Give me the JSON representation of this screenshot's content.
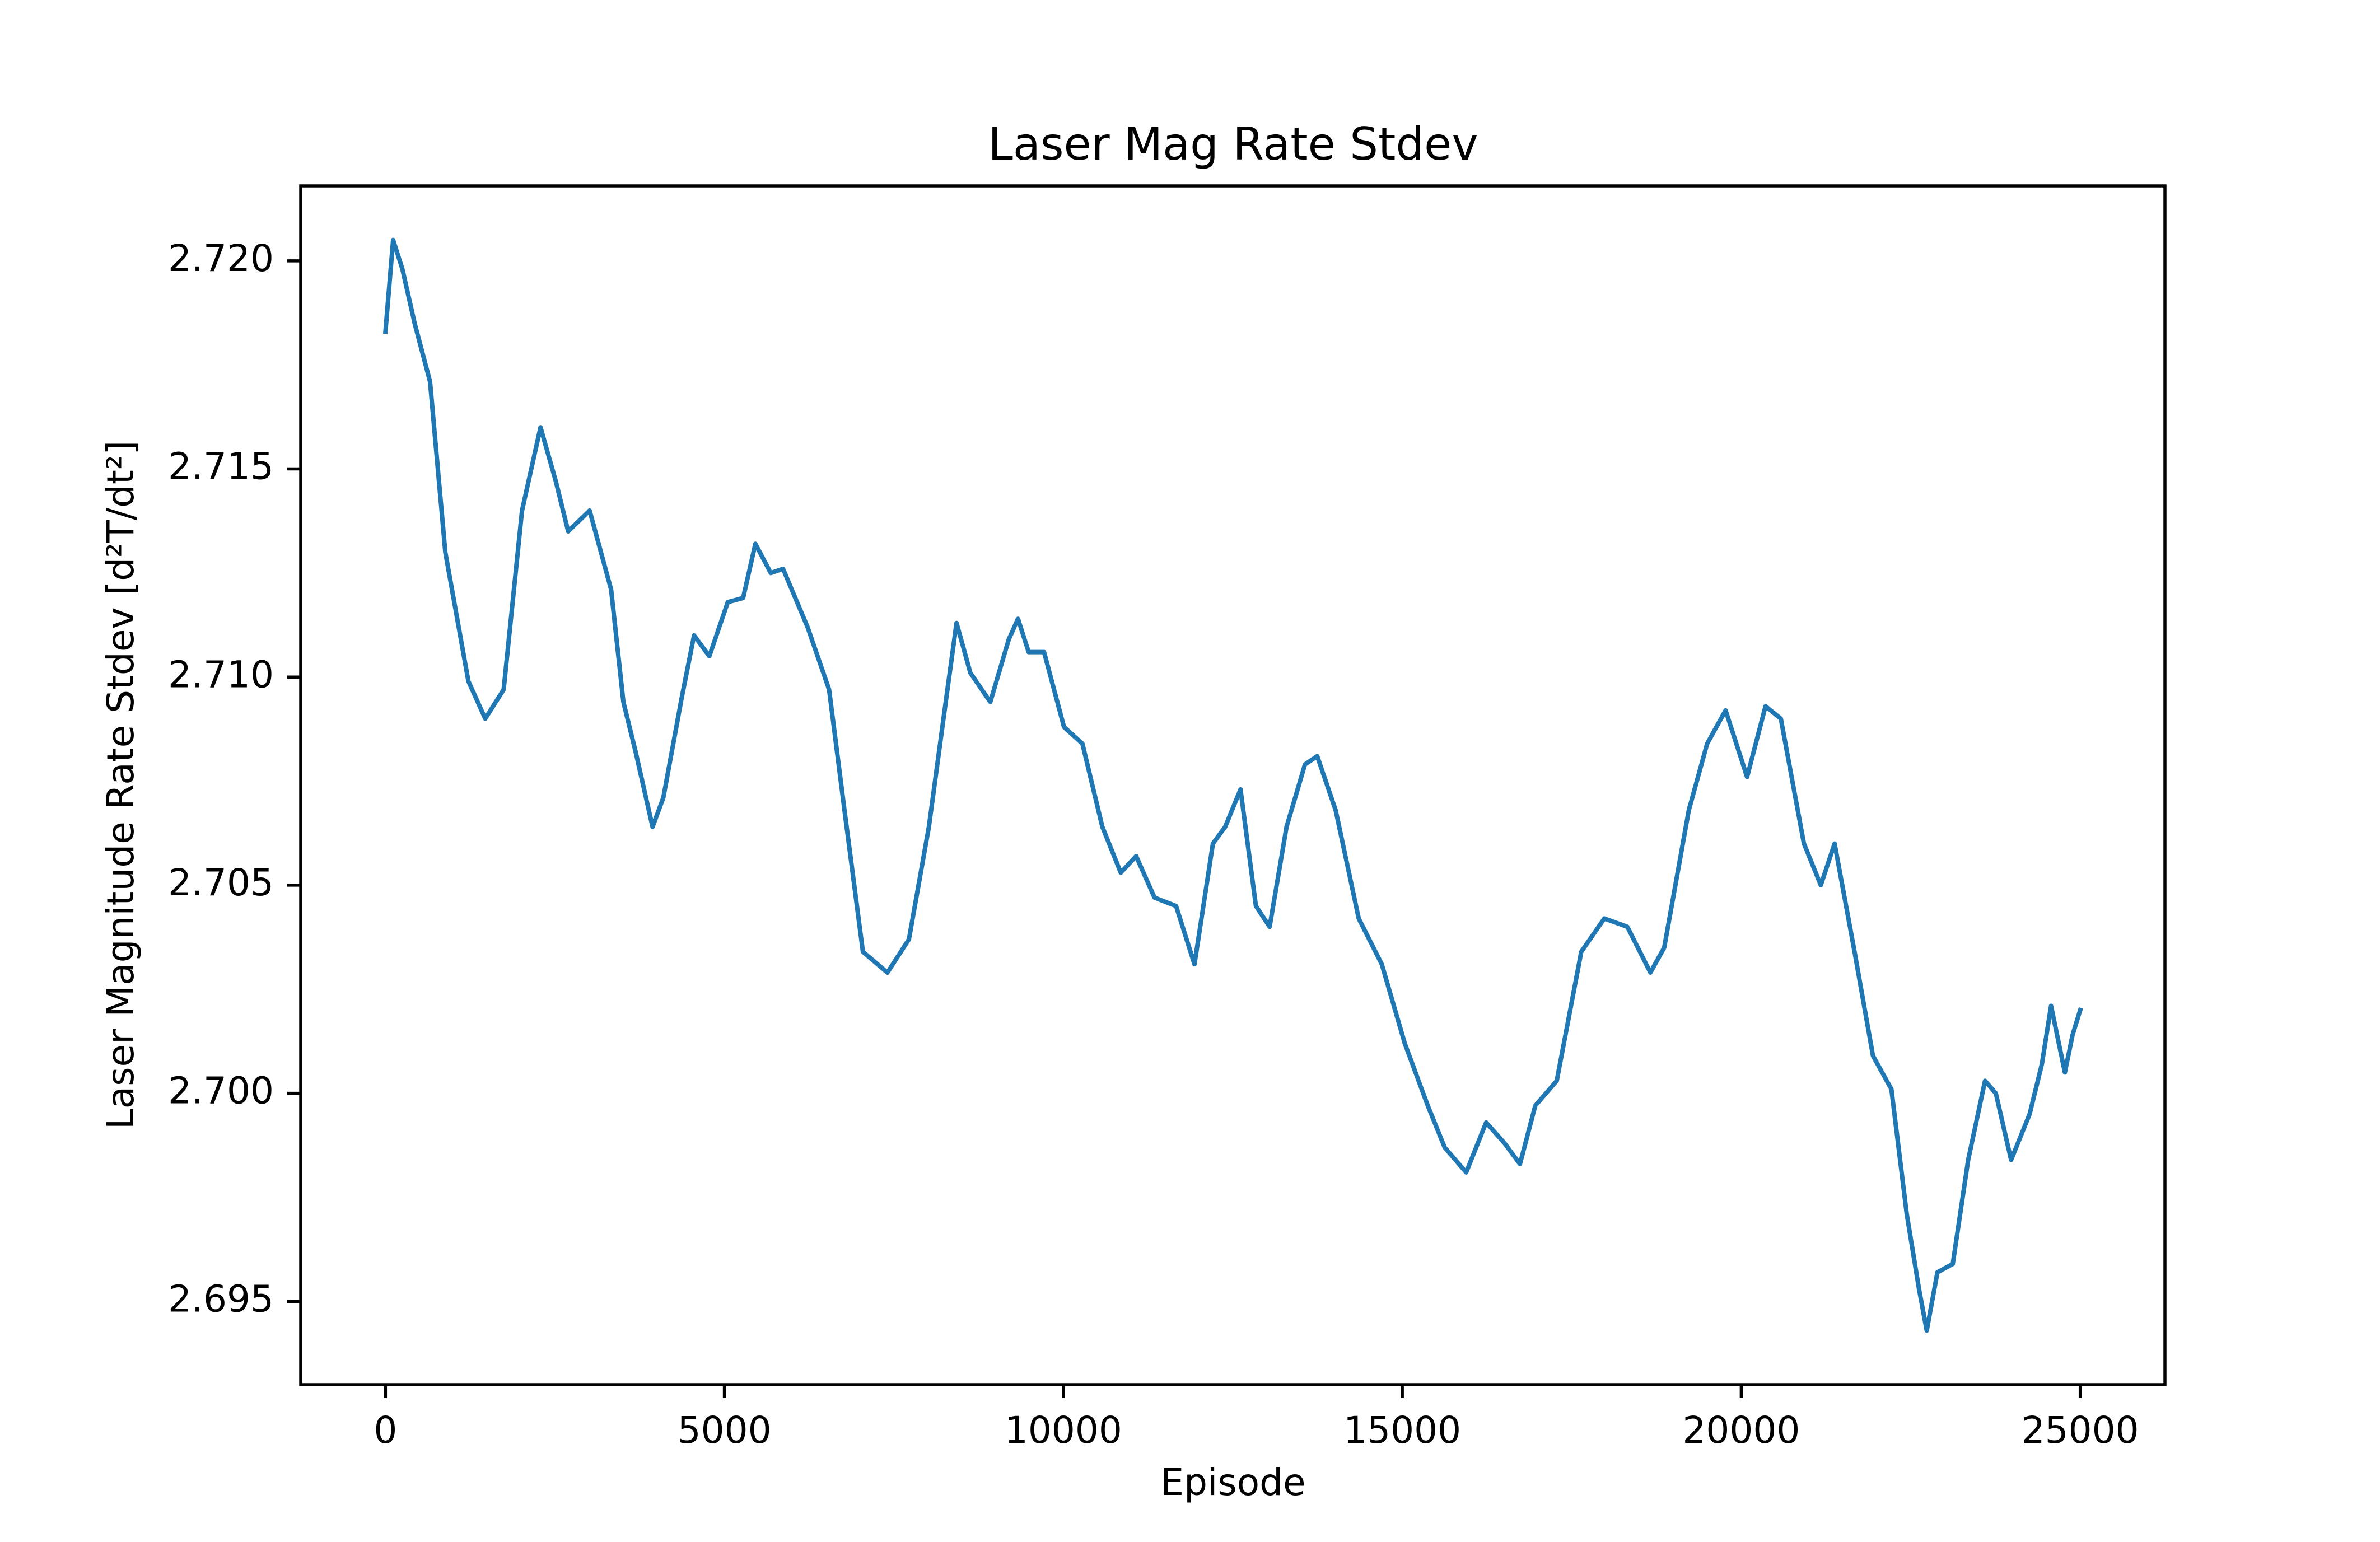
{
  "chart_data": {
    "type": "line",
    "title": "Laser Mag Rate Stdev",
    "x_label": "Episode",
    "y_label": "Laser Magnitude Rate Stdev [d²T/dt²]",
    "color": "#1f77b4",
    "x": [
      0,
      113,
      250,
      430,
      657,
      883,
      1223,
      1472,
      1744,
      2015,
      2287,
      2514,
      2695,
      3012,
      3329,
      3510,
      3691,
      3940,
      4099,
      4370,
      4552,
      4778,
      5050,
      5276,
      5457,
      5684,
      5865,
      6227,
      6544,
      6771,
      7043,
      7405,
      7722,
      8016,
      8265,
      8424,
      8628,
      8922,
      9194,
      9330,
      9488,
      9715,
      10009,
      10281,
      10575,
      10847,
      11073,
      11345,
      11662,
      11934,
      12206,
      12387,
      12613,
      12840,
      13043,
      13292,
      13564,
      13745,
      14017,
      14357,
      14697,
      15036,
      15376,
      15625,
      15942,
      16236,
      16508,
      16735,
      16961,
      17278,
      17640,
      17980,
      18320,
      18659,
      18863,
      19226,
      19497,
      19769,
      20086,
      20358,
      20584,
      20924,
      21173,
      21377,
      21671,
      21943,
      22215,
      22441,
      22622,
      22736,
      22894,
      23120,
      23347,
      23596,
      23755,
      23981,
      24253,
      24434,
      24570,
      24774,
      24887,
      25000
    ],
    "values": [
      2.7183,
      2.7205,
      2.7198,
      2.7185,
      2.7171,
      2.713,
      2.7099,
      2.709,
      2.7097,
      2.714,
      2.716,
      2.7147,
      2.7135,
      2.714,
      2.7121,
      2.7094,
      2.7082,
      2.7064,
      2.7071,
      2.7095,
      2.711,
      2.7105,
      2.7118,
      2.7119,
      2.7132,
      2.7125,
      2.7126,
      2.7112,
      2.7097,
      2.7068,
      2.7034,
      2.7029,
      2.7037,
      2.7064,
      2.7094,
      2.7113,
      2.7101,
      2.7094,
      2.7109,
      2.7114,
      2.7106,
      2.7106,
      2.7088,
      2.7084,
      2.7064,
      2.7053,
      2.7057,
      2.7047,
      2.7045,
      2.7031,
      2.706,
      2.7064,
      2.7073,
      2.7045,
      2.704,
      2.7064,
      2.7079,
      2.7081,
      2.7068,
      2.7042,
      2.7031,
      2.7012,
      2.6997,
      2.6987,
      2.6981,
      2.6993,
      2.6988,
      2.6983,
      2.6997,
      2.7003,
      2.7034,
      2.7042,
      2.704,
      2.7029,
      2.7035,
      2.7068,
      2.7084,
      2.7092,
      2.7076,
      2.7093,
      2.709,
      2.706,
      2.705,
      2.706,
      2.7034,
      2.7009,
      2.7001,
      2.6971,
      2.6953,
      2.6943,
      2.6957,
      2.6959,
      2.6984,
      2.7003,
      2.7,
      2.6984,
      2.6995,
      2.7007,
      2.7021,
      2.7005,
      2.7014,
      2.702
    ],
    "xlim": [
      -1250,
      26250
    ],
    "ylim": [
      2.693,
      2.7218
    ],
    "xticks": [
      0,
      5000,
      10000,
      15000,
      20000,
      25000
    ],
    "yticks": [
      2.695,
      {
        "value": 2.7,
        "label": "2.700"
      },
      2.705,
      {
        "value": 2.71,
        "label": "2.710"
      },
      2.715,
      {
        "value": 2.72,
        "label": "2.720"
      }
    ]
  }
}
